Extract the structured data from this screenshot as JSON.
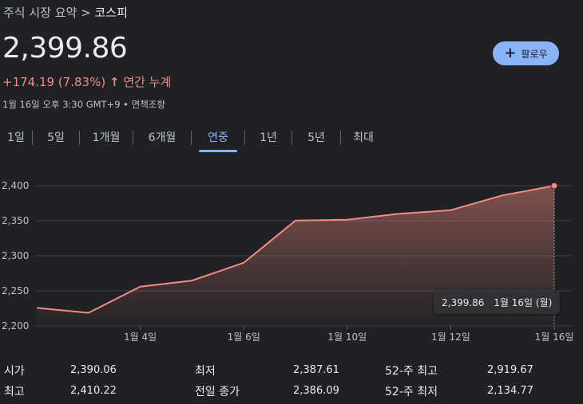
{
  "breadcrumb": {
    "parent": "주식 시장 요약",
    "separator": ">",
    "current": "코스피"
  },
  "quote": {
    "price": "2,399.86",
    "change": "+174.19 (7.83%)",
    "change_arrow": "↑",
    "period_label": "연간 누계",
    "meta": "1월 16일 오후 3:30 GMT+9 • 면책조항"
  },
  "follow_button": {
    "label": "팔로우"
  },
  "tabs": [
    {
      "label": "1일",
      "active": false
    },
    {
      "label": "5일",
      "active": false
    },
    {
      "label": "1개월",
      "active": false
    },
    {
      "label": "6개월",
      "active": false
    },
    {
      "label": "연중",
      "active": true
    },
    {
      "label": "1년",
      "active": false
    },
    {
      "label": "5년",
      "active": false
    },
    {
      "label": "최대",
      "active": false
    }
  ],
  "tooltip": {
    "value": "2,399.86",
    "date": "1월 16일 (월)"
  },
  "chart_data": {
    "type": "area",
    "title": "",
    "xlabel": "",
    "ylabel": "",
    "x": [
      "1월 2일",
      "1월 3일",
      "1월 4일",
      "1월 5일",
      "1월 6일",
      "1월 9일",
      "1월 10일",
      "1월 11일",
      "1월 12일",
      "1월 13일",
      "1월 16일"
    ],
    "values": [
      2225.67,
      2218.68,
      2255.98,
      2264.65,
      2289.97,
      2350.19,
      2351.31,
      2359.88,
      2365.1,
      2386.09,
      2399.86
    ],
    "x_ticks": [
      "1월 4일",
      "1월 6일",
      "1월 10일",
      "1월 12일",
      "1월 16일"
    ],
    "y_ticks": [
      "2,400",
      "2,350",
      "2,300",
      "2,250",
      "2,200"
    ],
    "y_tick_values": [
      2400,
      2350,
      2300,
      2250,
      2200
    ],
    "ylim": [
      2200,
      2400
    ],
    "grid": true,
    "line_color": "#f28b82"
  },
  "stats": [
    {
      "label": "시가",
      "value": "2,390.06"
    },
    {
      "label": "최저",
      "value": "2,387.61"
    },
    {
      "label": "52-주 최고",
      "value": "2,919.67"
    },
    {
      "label": "최고",
      "value": "2,410.22"
    },
    {
      "label": "전일 종가",
      "value": "2,386.09"
    },
    {
      "label": "52-주 최저",
      "value": "2,134.77"
    }
  ]
}
